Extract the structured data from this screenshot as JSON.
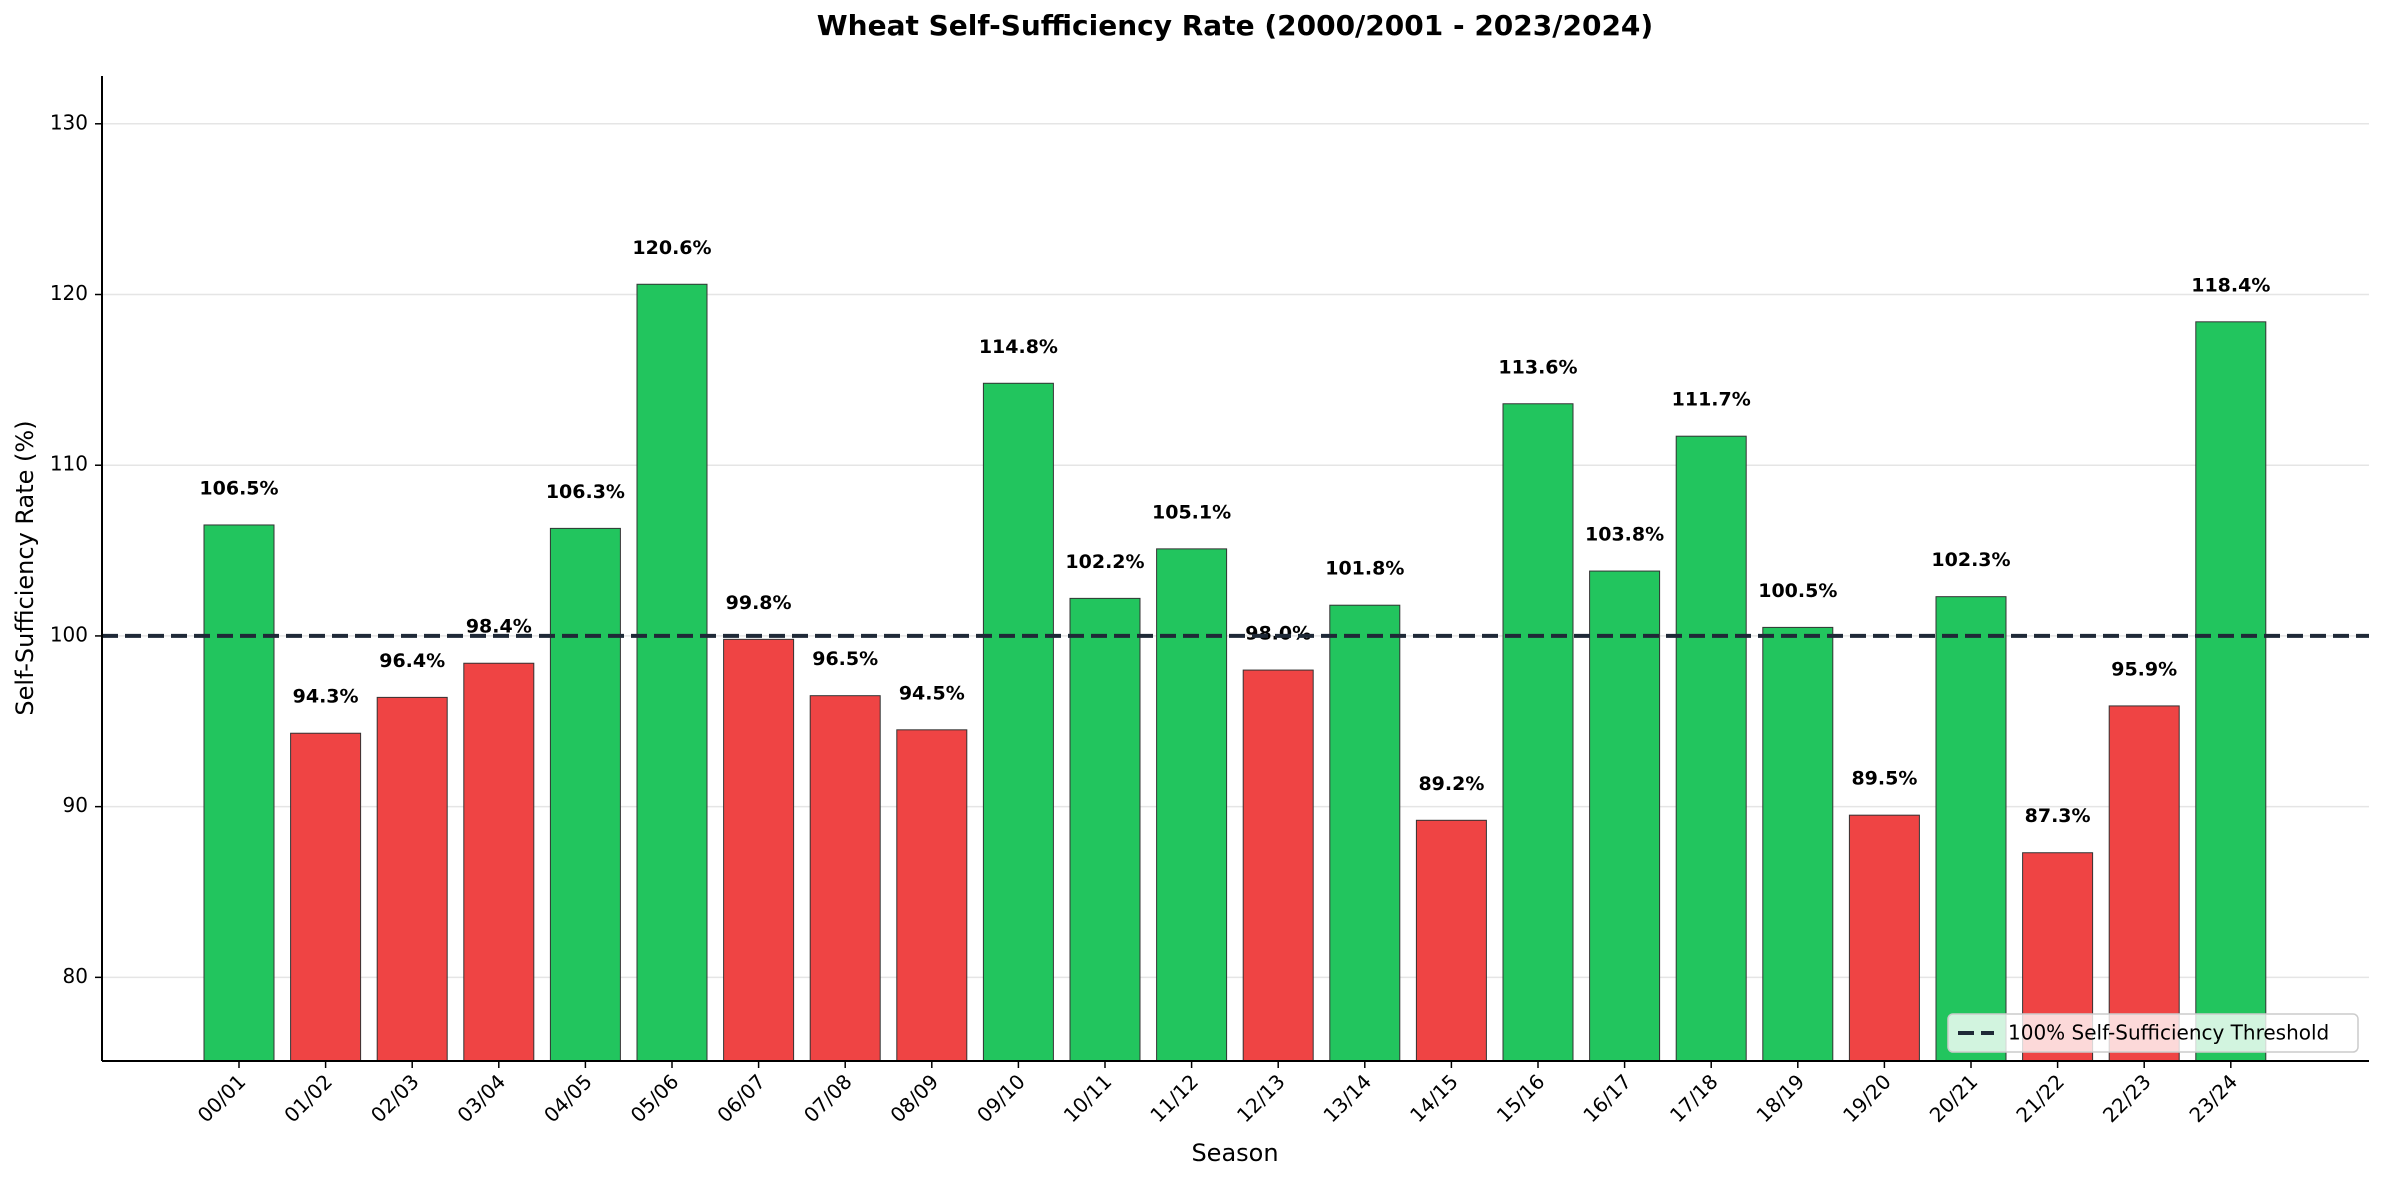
{
  "chart_data": {
    "type": "bar",
    "title": "Wheat Self-Sufficiency Rate (2000/2001 - 2023/2024)",
    "x_label": "Season",
    "y_label": "Self-Sufficiency Rate (%)",
    "categories": [
      "00/01",
      "01/02",
      "02/03",
      "03/04",
      "04/05",
      "05/06",
      "06/07",
      "07/08",
      "08/09",
      "09/10",
      "10/11",
      "11/12",
      "12/13",
      "13/14",
      "14/15",
      "15/16",
      "16/17",
      "17/18",
      "18/19",
      "19/20",
      "20/21",
      "21/22",
      "22/23",
      "23/24"
    ],
    "values": [
      106.5,
      94.3,
      96.4,
      98.4,
      106.3,
      120.6,
      99.8,
      96.5,
      94.5,
      114.8,
      102.2,
      105.1,
      98.0,
      101.8,
      89.2,
      113.6,
      103.8,
      111.7,
      100.5,
      89.5,
      102.3,
      87.3,
      95.9,
      118.4
    ],
    "value_labels": [
      "106.5%",
      "94.3%",
      "96.4%",
      "98.4%",
      "106.3%",
      "120.6%",
      "99.8%",
      "96.5%",
      "94.5%",
      "114.8%",
      "102.2%",
      "105.1%",
      "98.0%",
      "101.8%",
      "89.2%",
      "113.6%",
      "103.8%",
      "111.7%",
      "100.5%",
      "89.5%",
      "102.3%",
      "87.3%",
      "95.9%",
      "118.4%"
    ],
    "colors": [
      "#22c55e",
      "#ef4444",
      "#ef4444",
      "#ef4444",
      "#22c55e",
      "#22c55e",
      "#ef4444",
      "#ef4444",
      "#ef4444",
      "#22c55e",
      "#22c55e",
      "#22c55e",
      "#ef4444",
      "#22c55e",
      "#ef4444",
      "#22c55e",
      "#22c55e",
      "#22c55e",
      "#22c55e",
      "#ef4444",
      "#22c55e",
      "#ef4444",
      "#ef4444",
      "#22c55e"
    ],
    "ylim": [
      75.1,
      132.8
    ],
    "yticks": [
      80,
      90,
      100,
      110,
      120,
      130
    ],
    "grid": true,
    "threshold": {
      "value": 100,
      "label": "100% Self-Sufficiency Threshold",
      "color": "#1f2937"
    },
    "legend_position": "lower right"
  }
}
